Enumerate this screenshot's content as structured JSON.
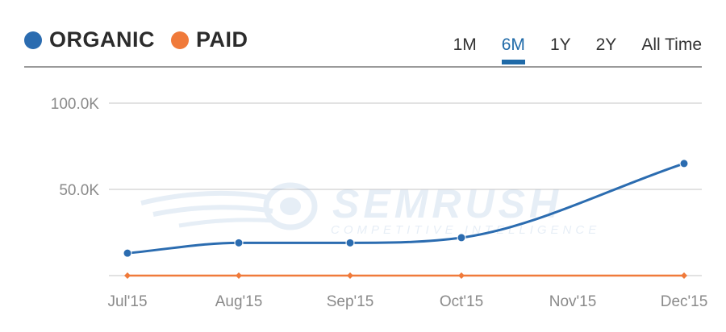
{
  "legend": {
    "items": [
      {
        "label": "ORGANIC",
        "color": "#2b6cb0"
      },
      {
        "label": "PAID",
        "color": "#f07a3a"
      }
    ]
  },
  "tabs": [
    {
      "label": "1M",
      "active": false
    },
    {
      "label": "6M",
      "active": true
    },
    {
      "label": "1Y",
      "active": false
    },
    {
      "label": "2Y",
      "active": false
    },
    {
      "label": "All Time",
      "active": false
    }
  ],
  "watermark": {
    "brand": "SEMRUSH",
    "tagline": "COMPETITIVE INTELLIGENCE"
  },
  "chart_data": {
    "type": "line",
    "categories": [
      "Jul'15",
      "Aug'15",
      "Sep'15",
      "Oct'15",
      "Nov'15",
      "Dec'15"
    ],
    "ylim": [
      0,
      100000
    ],
    "yticks": [
      {
        "value": 50000,
        "label": "50.0K"
      },
      {
        "value": 100000,
        "label": "100.0K"
      }
    ],
    "grid": true,
    "legend_position": "top-left",
    "series": [
      {
        "name": "ORGANIC",
        "color": "#2b6cb0",
        "points": [
          {
            "x": 0,
            "y": 13000
          },
          {
            "x": 1,
            "y": 19000
          },
          {
            "x": 2,
            "y": 19000
          },
          {
            "x": 3,
            "y": 22000
          },
          {
            "x": 5,
            "y": 65000
          }
        ]
      },
      {
        "name": "PAID",
        "color": "#f07a3a",
        "points": [
          {
            "x": 0,
            "y": 0
          },
          {
            "x": 1,
            "y": 0
          },
          {
            "x": 2,
            "y": 0
          },
          {
            "x": 3,
            "y": 0
          },
          {
            "x": 5,
            "y": 0
          }
        ]
      }
    ]
  }
}
